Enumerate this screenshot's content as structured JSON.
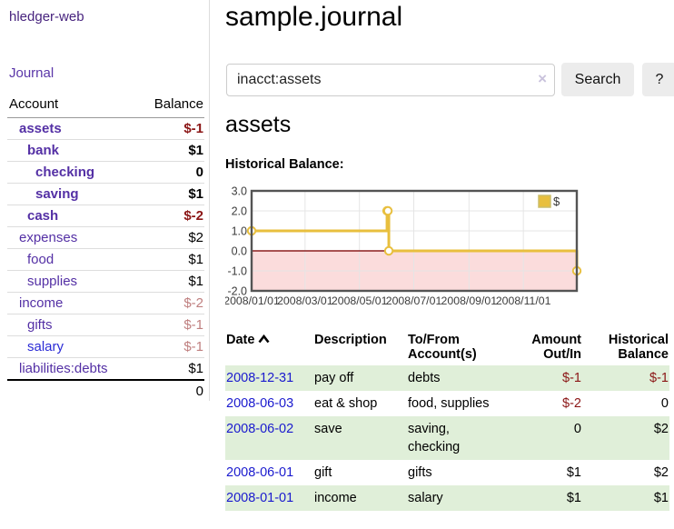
{
  "colors": {
    "link_purple": "#5430a5",
    "link_blue": "#2b2bd6",
    "brand_purple": "#47237e",
    "negative": "#8b1616",
    "negative_muted": "#bf7f7f",
    "row_green": "#e0efd9",
    "chart_line": "#e8bf3e",
    "chart_negative_fill": "#fbdcdc",
    "chart_zero_line": "#8b1f1f"
  },
  "sidebar": {
    "brand": "hledger-web",
    "nav_journal": "Journal",
    "table": {
      "headers": [
        "Account",
        "Balance"
      ],
      "rows": [
        {
          "account": "assets",
          "balance": "$-1",
          "indent": 1,
          "bold": true,
          "link_color": "purple",
          "balance_style": "neg"
        },
        {
          "account": "bank",
          "balance": "$1",
          "indent": 2,
          "bold": true,
          "link_color": "purple",
          "balance_style": "normal"
        },
        {
          "account": "checking",
          "balance": "0",
          "indent": 3,
          "bold": true,
          "link_color": "purple",
          "balance_style": "normal"
        },
        {
          "account": "saving",
          "balance": "$1",
          "indent": 3,
          "bold": true,
          "link_color": "purple",
          "balance_style": "normal"
        },
        {
          "account": "cash",
          "balance": "$-2",
          "indent": 2,
          "bold": true,
          "link_color": "purple",
          "balance_style": "neg"
        },
        {
          "account": "expenses",
          "balance": "$2",
          "indent": 1,
          "bold": false,
          "link_color": "purple",
          "balance_style": "normal"
        },
        {
          "account": "food",
          "balance": "$1",
          "indent": 2,
          "bold": false,
          "link_color": "purple",
          "balance_style": "normal"
        },
        {
          "account": "supplies",
          "balance": "$1",
          "indent": 2,
          "bold": false,
          "link_color": "purple",
          "balance_style": "normal"
        },
        {
          "account": "income",
          "balance": "$-2",
          "indent": 1,
          "bold": false,
          "link_color": "purple",
          "balance_style": "neg-muted"
        },
        {
          "account": "gifts",
          "balance": "$-1",
          "indent": 2,
          "bold": false,
          "link_color": "purple",
          "balance_style": "neg-muted"
        },
        {
          "account": "salary",
          "balance": "$-1",
          "indent": 2,
          "bold": false,
          "link_color": "blue",
          "balance_style": "neg-muted"
        },
        {
          "account": "liabilities:debts",
          "balance": "$1",
          "indent": 1,
          "bold": false,
          "link_color": "purple",
          "balance_style": "normal"
        }
      ],
      "total": "0"
    }
  },
  "main": {
    "title": "sample.journal",
    "search": {
      "value": "inacct:assets",
      "clear_icon": "×",
      "button": "Search",
      "help_button": "?"
    },
    "account_heading": "assets",
    "chart_title": "Historical Balance:"
  },
  "chart_data": {
    "type": "line",
    "step": true,
    "title": "Historical Balance:",
    "xmin": "2008/01/01",
    "xmax": "2008/12/31",
    "ylim": [
      -2,
      3
    ],
    "yticks": [
      "3.0",
      "2.0",
      "1.0",
      "0.0",
      "-1.0",
      "-2.0"
    ],
    "ytick_values": [
      3,
      2,
      1,
      0,
      -1,
      -2
    ],
    "xticks": [
      "2008/01/01",
      "2008/03/01",
      "2008/05/01",
      "2008/07/01",
      "2008/09/01",
      "2008/11/01"
    ],
    "grid": true,
    "legend": {
      "label": "$",
      "position": "top-right"
    },
    "series": [
      {
        "name": "$",
        "color": "#e8bf3e",
        "points": [
          [
            "2008-01-01",
            1
          ],
          [
            "2008-06-01",
            2
          ],
          [
            "2008-06-02",
            2
          ],
          [
            "2008-06-03",
            0
          ],
          [
            "2008-12-31",
            -1
          ]
        ]
      }
    ],
    "negative_region_fill": "#fbdcdc",
    "zero_line_color": "#8b1f1f"
  },
  "transactions": {
    "headers": {
      "date": "Date",
      "description": "Description",
      "accounts": "To/From Account(s)",
      "amount": "Amount Out/In",
      "balance": "Historical Balance"
    },
    "rows": [
      {
        "date": "2008-12-31",
        "description": "pay off",
        "accounts": "debts",
        "amount": "$-1",
        "amount_negative": true,
        "balance": "$-1",
        "balance_negative": true
      },
      {
        "date": "2008-06-03",
        "description": "eat & shop",
        "accounts": "food, supplies",
        "amount": "$-2",
        "amount_negative": true,
        "balance": "0",
        "balance_negative": false
      },
      {
        "date": "2008-06-02",
        "description": "save",
        "accounts": "saving, checking",
        "amount": "0",
        "amount_negative": false,
        "balance": "$2",
        "balance_negative": false
      },
      {
        "date": "2008-06-01",
        "description": "gift",
        "accounts": "gifts",
        "amount": "$1",
        "amount_negative": false,
        "balance": "$2",
        "balance_negative": false
      },
      {
        "date": "2008-01-01",
        "description": "income",
        "accounts": "salary",
        "amount": "$1",
        "amount_negative": false,
        "balance": "$1",
        "balance_negative": false
      }
    ]
  }
}
